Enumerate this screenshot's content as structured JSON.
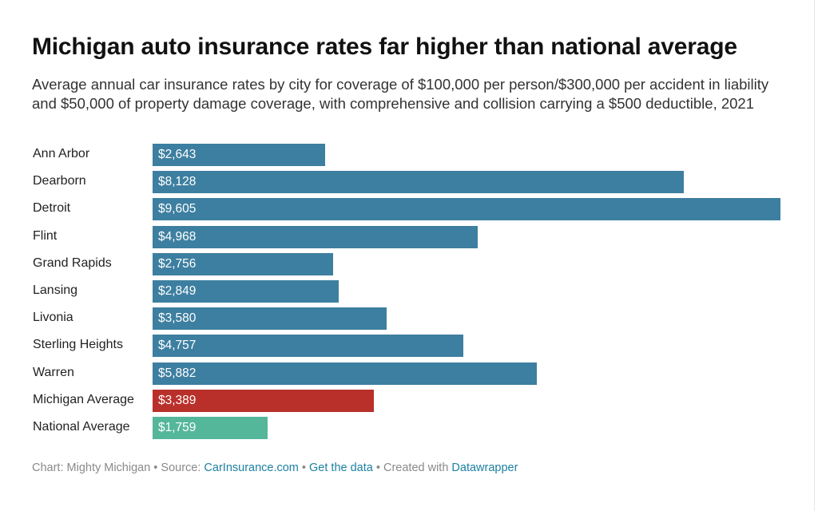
{
  "header": {
    "title": "Michigan auto insurance rates far higher than national average",
    "subtitle": "Average annual car insurance rates by city for coverage of $100,000 per person/$300,000 per accident in liability and $50,000 of property damage coverage, with comprehensive and collision carrying a $500 deductible, 2021"
  },
  "colors": {
    "city": "#3d7fa0",
    "michigan_average": "#b9302b",
    "national_average": "#55b79a"
  },
  "chart_data": {
    "type": "bar",
    "orientation": "horizontal",
    "title": "Michigan auto insurance rates far higher than national average",
    "categories": [
      "Ann Arbor",
      "Dearborn",
      "Detroit",
      "Flint",
      "Grand Rapids",
      "Lansing",
      "Livonia",
      "Sterling Heights",
      "Warren",
      "Michigan Average",
      "National Average"
    ],
    "values": [
      2643,
      8128,
      9605,
      4968,
      2756,
      2849,
      3580,
      4757,
      5882,
      3389,
      1759
    ],
    "value_labels": [
      "$2,643",
      "$8,128",
      "$9,605",
      "$4,968",
      "$2,756",
      "$2,849",
      "$3,580",
      "$4,757",
      "$5,882",
      "$3,389",
      "$1,759"
    ],
    "bar_colors": [
      "#3d7fa0",
      "#3d7fa0",
      "#3d7fa0",
      "#3d7fa0",
      "#3d7fa0",
      "#3d7fa0",
      "#3d7fa0",
      "#3d7fa0",
      "#3d7fa0",
      "#b9302b",
      "#55b79a"
    ],
    "xlim": [
      0,
      9605
    ],
    "grid": false,
    "legend": "none"
  },
  "footer": {
    "chart_credit": "Chart: Mighty Michigan",
    "separator": " • ",
    "source_prefix": "Source: ",
    "source_link": "CarInsurance.com",
    "get_data_link": "Get the data",
    "created_with_prefix": "Created with ",
    "created_with_link": "Datawrapper"
  }
}
